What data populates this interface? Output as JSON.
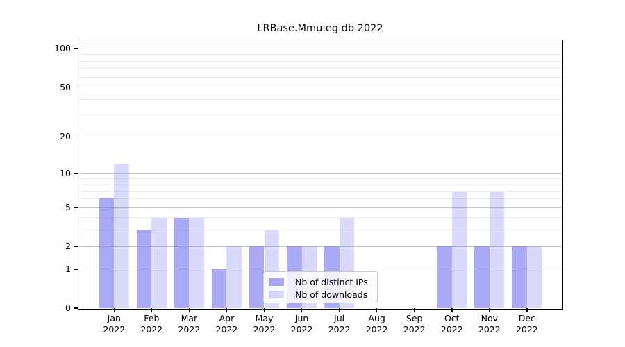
{
  "chart_data": {
    "type": "bar",
    "title": "LRBase.Mmu.eg.db 2022",
    "x_months": [
      "Jan",
      "Feb",
      "Mar",
      "Apr",
      "May",
      "Jun",
      "Jul",
      "Aug",
      "Sep",
      "Oct",
      "Nov",
      "Dec"
    ],
    "x_year": "2022",
    "series": [
      {
        "name": "Nb of distinct IPs",
        "color": "rgba(102,102,238,0.56)",
        "values": [
          6,
          3,
          4,
          1,
          2,
          2,
          2,
          0,
          0,
          2,
          2,
          2
        ]
      },
      {
        "name": "Nb of downloads",
        "color": "rgba(102,102,238,0.25)",
        "values": [
          12,
          4,
          4,
          2,
          3,
          2,
          4,
          0,
          0,
          7,
          7,
          2
        ]
      }
    ],
    "y_axis": {
      "scale": "log10(1+y)",
      "tick_values": [
        0,
        1,
        2,
        5,
        10,
        20,
        50,
        100
      ],
      "minor_gridline_values": [
        3,
        4,
        6,
        7,
        8,
        9,
        30,
        40,
        60,
        70,
        80,
        90
      ],
      "ylim": [
        0,
        117
      ]
    },
    "legend": {
      "position": "lower-center"
    },
    "grid": {
      "on": true,
      "major_color": "#c6c6c6",
      "minor_color": "#ebebeb"
    },
    "colors": {
      "spine": "#000000",
      "text": "#000000",
      "legend_border": "#cccccc",
      "legend_background": "rgba(255,255,255,0.8)"
    }
  }
}
